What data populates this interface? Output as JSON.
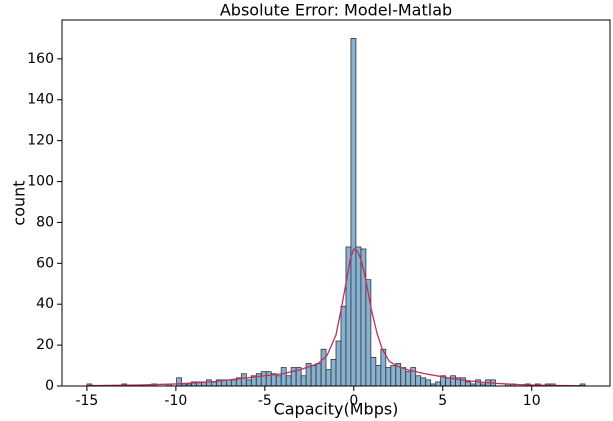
{
  "chart_data": {
    "type": "histogram",
    "title": "Absolute Error: Model-Matlab",
    "xlabel": "Capacity(Mbps)",
    "ylabel": "count",
    "bins": [
      -15,
      -14.72,
      -14.44,
      -14.16,
      -13.88,
      -13.6,
      -13.32,
      -13.04,
      -12.76,
      -12.48,
      -12.2,
      -11.92,
      -11.64,
      -11.36,
      -11.08,
      -10.8,
      -10.52,
      -10.24,
      -9.96,
      -9.68,
      -9.4,
      -9.12,
      -8.84,
      -8.56,
      -8.28,
      -8,
      -7.72,
      -7.44,
      -7.16,
      -6.88,
      -6.6,
      -6.32,
      -6.04,
      -5.76,
      -5.48,
      -5.2,
      -4.92,
      -4.64,
      -4.36,
      -4.08,
      -3.8,
      -3.52,
      -3.24,
      -2.96,
      -2.68,
      -2.4,
      -2.12,
      -1.84,
      -1.56,
      -1.28,
      -1,
      -0.72,
      -0.44,
      -0.16,
      0.12,
      0.4,
      0.68,
      0.96,
      1.24,
      1.52,
      1.8,
      2.08,
      2.36,
      2.64,
      2.92,
      3.2,
      3.48,
      3.76,
      4.04,
      4.32,
      4.6,
      4.88,
      5.16,
      5.44,
      5.72,
      6,
      6.28,
      6.56,
      6.84,
      7.12,
      7.4,
      7.68,
      7.96,
      8.24,
      8.52,
      8.8,
      9.08,
      9.36,
      9.64,
      9.92,
      10.2,
      10.48,
      10.76,
      11.04,
      11.32,
      11.6,
      11.88,
      12.16,
      12.44,
      12.72,
      13
    ],
    "counts": [
      1,
      0,
      0,
      0,
      0,
      0,
      0,
      1,
      0,
      0,
      0,
      0,
      0,
      1,
      0,
      0,
      1,
      0,
      4,
      1,
      1,
      2,
      2,
      2,
      3,
      2,
      3,
      3,
      3,
      3,
      4,
      6,
      3,
      5,
      6,
      7,
      7,
      6,
      5,
      9,
      5,
      9,
      9,
      5,
      11,
      10,
      11,
      18,
      8,
      13,
      22,
      39,
      68,
      170,
      68,
      67,
      52,
      14,
      10,
      18,
      9,
      10,
      11,
      9,
      7,
      9,
      5,
      4,
      3,
      1,
      2,
      5,
      4,
      5,
      4,
      4,
      2,
      1,
      3,
      1,
      3,
      3,
      0,
      0,
      1,
      1,
      0,
      0,
      1,
      0,
      1,
      0,
      1,
      1,
      0,
      0,
      0,
      0,
      0,
      1
    ],
    "color": "#86b1d0",
    "edgecolor": "#333333",
    "line": {
      "x": [
        -15,
        -12,
        -10,
        -8,
        -7,
        -6,
        -5,
        -4,
        -3,
        -2.5,
        -2,
        -1.5,
        -1,
        -0.7,
        -0.4,
        -0.2,
        0,
        0.2,
        0.4,
        0.6,
        0.8,
        1,
        1.3,
        1.6,
        2,
        2.5,
        3,
        4,
        5,
        6,
        7,
        8,
        9,
        10,
        11,
        13
      ],
      "y": [
        0.2,
        0.5,
        1,
        2,
        3,
        4,
        5,
        6,
        8,
        9.5,
        11,
        15,
        25,
        38,
        52,
        62,
        67,
        66,
        62,
        55,
        46,
        37,
        26,
        18,
        12,
        9.5,
        8,
        6,
        4.5,
        3,
        2,
        1.3,
        0.8,
        0.5,
        0.3,
        0.1
      ],
      "color": "#c0305f"
    },
    "xlim": [
      -16.4,
      14.4
    ],
    "ylim": [
      0,
      179
    ],
    "xticks": [
      -15,
      -10,
      -5,
      0,
      5,
      10
    ],
    "yticks": [
      0,
      20,
      40,
      60,
      80,
      100,
      120,
      140,
      160
    ]
  }
}
